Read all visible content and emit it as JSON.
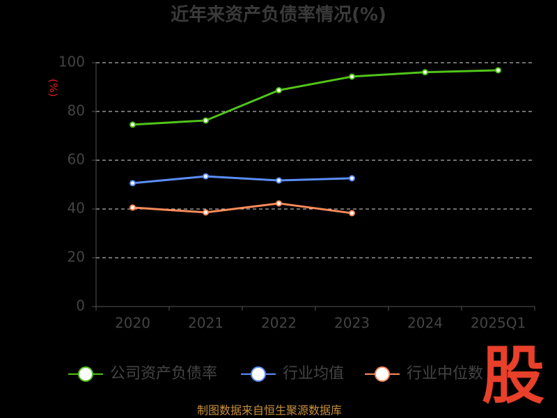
{
  "chart_data": {
    "type": "line",
    "title": "近年来资产负债率情况(%)",
    "y_label": "(%)",
    "categories": [
      "2020",
      "2021",
      "2022",
      "2023",
      "2024",
      "2025Q1"
    ],
    "series": [
      {
        "name": "公司资产负债率",
        "color": "#52c41a",
        "values": [
          74.6,
          76.3,
          88.7,
          94.3,
          96.1,
          96.9
        ]
      },
      {
        "name": "行业均值",
        "color": "#5b8ff9",
        "values": [
          50.6,
          53.4,
          51.7,
          52.6,
          null,
          null
        ]
      },
      {
        "name": "行业中位数",
        "color": "#ff8c5a",
        "values": [
          40.6,
          38.6,
          42.3,
          38.3,
          null,
          null
        ]
      }
    ],
    "ylim": [
      0,
      100
    ],
    "yticks": [
      0,
      20,
      40,
      60,
      80,
      100
    ],
    "grid": true,
    "footer": "制图数据来自恒生聚源数据库",
    "watermark": "股"
  }
}
